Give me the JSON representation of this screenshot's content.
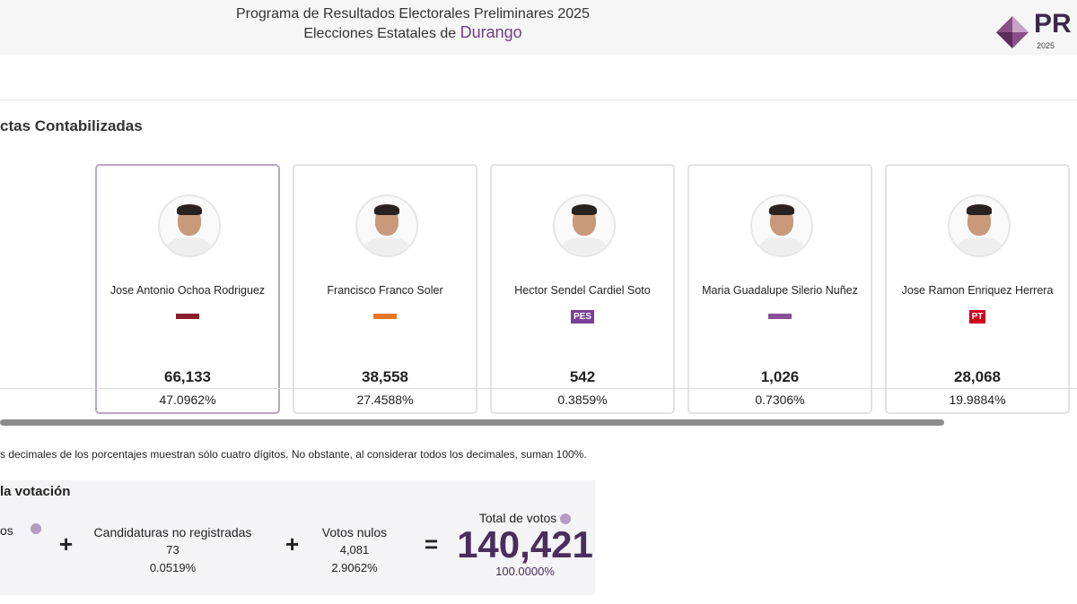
{
  "header": {
    "title": "Programa de Resultados Electorales Preliminares 2025",
    "subtitle": "Elecciones Estatales de",
    "state": "Durango",
    "logo": "PR",
    "logo_year": "2025"
  },
  "section_title": "ctas Contabilizadas",
  "candidates": [
    {
      "name": "Jose Antonio Ochoa Rodriguez",
      "votes": "66,133",
      "percent": "47.0962%",
      "logos": []
    },
    {
      "name": "Francisco Franco Soler",
      "votes": "38,558",
      "percent": "27.4588%",
      "logos": []
    },
    {
      "name": "Hector Sendel Cardiel Soto",
      "votes": "542",
      "percent": "0.3859%",
      "logos": [
        "PES"
      ]
    },
    {
      "name": "Maria Guadalupe Silerio Nuñez",
      "votes": "1,026",
      "percent": "0.7306%",
      "logos": []
    },
    {
      "name": "Jose Ramon Enriquez Herrera",
      "votes": "28,068",
      "percent": "19.9884%",
      "logos": [
        "PT"
      ]
    }
  ],
  "note": "s decimales de los porcentajes muestran sólo cuatro dígitos. No obstante, al considerar todos los decimales, suman 100%.",
  "summary": {
    "title": "la votación",
    "first_label": "os",
    "plus_1": "+",
    "unregistered": {
      "label": "Candidaturas no registradas",
      "votes": "73",
      "percent": "0.0519%"
    },
    "plus_2": "+",
    "null_votes": {
      "label": "Votos nulos",
      "votes": "4,081",
      "percent": "2.9062%"
    },
    "equals": "=",
    "total": {
      "label": "Total de votos",
      "votes": "140,421",
      "percent": "100.0000%"
    }
  }
}
